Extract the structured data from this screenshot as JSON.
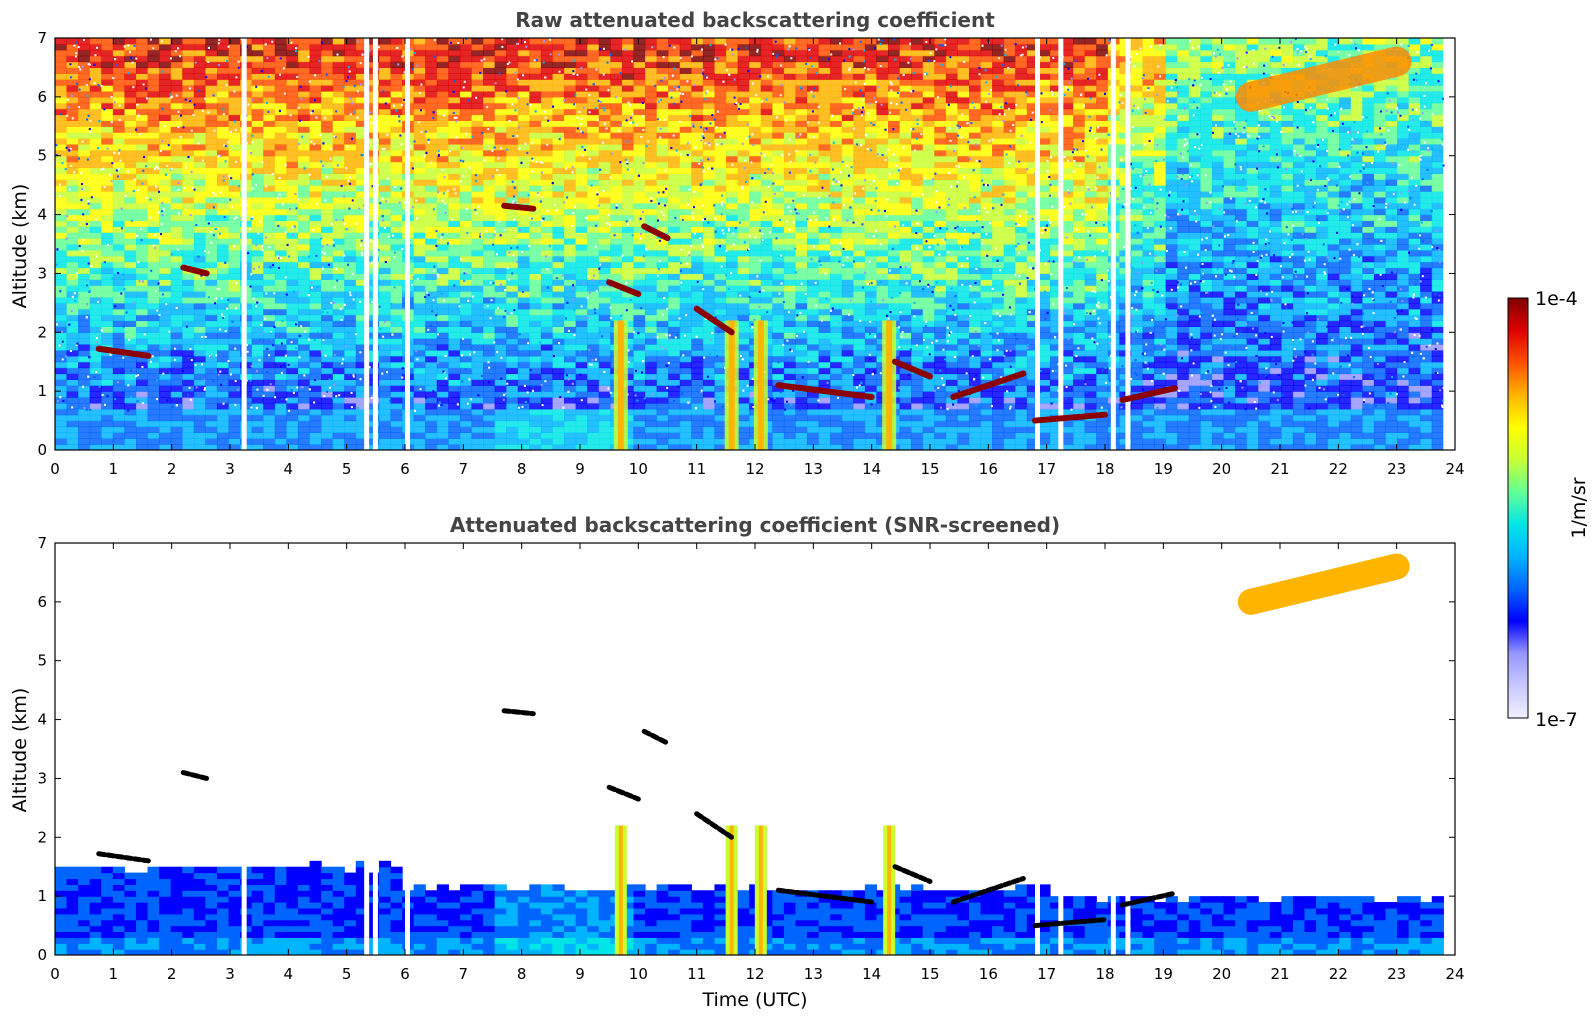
{
  "chart_data": [
    {
      "type": "heatmap",
      "title": "Raw attenuated backscattering coefficient",
      "xlabel": "",
      "ylabel": "Altitude (km)",
      "xlim": [
        0,
        24
      ],
      "ylim": [
        0,
        7
      ],
      "xticks": [
        "0",
        "1",
        "2",
        "3",
        "4",
        "5",
        "6",
        "7",
        "8",
        "9",
        "10",
        "11",
        "12",
        "13",
        "14",
        "15",
        "16",
        "17",
        "18",
        "19",
        "20",
        "21",
        "22",
        "23",
        "24"
      ],
      "yticks": [
        "0",
        "1",
        "2",
        "3",
        "4",
        "5",
        "6",
        "7"
      ],
      "features": {
        "boundary_layer_top_km": 0.7,
        "cloud_segments": [
          {
            "x": [
              0.75,
              1.6
            ],
            "y": [
              1.72,
              1.6
            ]
          },
          {
            "x": [
              2.2,
              2.6
            ],
            "y": [
              3.1,
              3.0
            ]
          },
          {
            "x": [
              7.7,
              8.2
            ],
            "y": [
              4.15,
              4.1
            ]
          },
          {
            "x": [
              9.5,
              10.0
            ],
            "y": [
              2.85,
              2.65
            ]
          },
          {
            "x": [
              10.1,
              10.5
            ],
            "y": [
              3.8,
              3.6
            ]
          },
          {
            "x": [
              11.0,
              11.6
            ],
            "y": [
              2.4,
              2.0
            ]
          },
          {
            "x": [
              12.4,
              14.0
            ],
            "y": [
              1.1,
              0.9
            ]
          },
          {
            "x": [
              14.4,
              15.0
            ],
            "y": [
              1.5,
              1.25
            ]
          },
          {
            "x": [
              15.4,
              16.6
            ],
            "y": [
              0.9,
              1.3
            ]
          },
          {
            "x": [
              16.8,
              18.0
            ],
            "y": [
              0.5,
              0.6
            ]
          },
          {
            "x": [
              18.3,
              19.2
            ],
            "y": [
              0.85,
              1.05
            ]
          },
          {
            "x": [
              20.5,
              23.0
            ],
            "y": [
              6.0,
              6.6
            ]
          }
        ],
        "precipitation_columns_hours": [
          9.7,
          11.6,
          12.1,
          14.3
        ],
        "data_gap_hours": [
          3.2,
          5.3,
          5.45,
          6.0,
          16.8,
          17.2,
          18.1,
          18.35
        ]
      }
    },
    {
      "type": "heatmap",
      "title": "Attenuated backscattering coefficient (SNR-screened)",
      "xlabel": "Time (UTC)",
      "ylabel": "Altitude (km)",
      "xlim": [
        0,
        24
      ],
      "ylim": [
        0,
        7
      ],
      "xticks": [
        "0",
        "1",
        "2",
        "3",
        "4",
        "5",
        "6",
        "7",
        "8",
        "9",
        "10",
        "11",
        "12",
        "13",
        "14",
        "15",
        "16",
        "17",
        "18",
        "19",
        "20",
        "21",
        "22",
        "23",
        "24"
      ],
      "yticks": [
        "0",
        "1",
        "2",
        "3",
        "4",
        "5",
        "6",
        "7"
      ],
      "features": {
        "screened_boundary_layer_top_km": 1.5
      }
    }
  ],
  "colorbar": {
    "label": "1/m/sr",
    "max_label": "1e-4",
    "min_label": "1e-7",
    "colors": [
      "#f0f0ff",
      "#c8c8ff",
      "#9696ff",
      "#0000ff",
      "#0064ff",
      "#00b4ff",
      "#00e6e6",
      "#64ff96",
      "#c8ff32",
      "#ffff00",
      "#ffb400",
      "#ff5000",
      "#e00000",
      "#800000"
    ]
  }
}
